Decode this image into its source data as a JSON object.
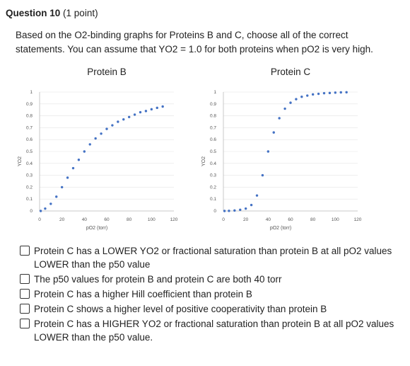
{
  "question": {
    "title": "Question 10",
    "points": "(1 point)",
    "prompt": "Based on the O2-binding graphs for Proteins B and C, choose all of the correct statements. You can assume that YO2 = 1.0 for both proteins when pO2 is very high."
  },
  "chart_data": [
    {
      "type": "scatter",
      "title": "Protein B",
      "xlabel": "pO2 (torr)",
      "ylabel": "YO2",
      "xlim": [
        0,
        120
      ],
      "ylim": [
        0,
        1
      ],
      "xticks": [
        "0",
        "20",
        "40",
        "60",
        "80",
        "100",
        "120"
      ],
      "yticks": [
        "0",
        "0.1",
        "0.2",
        "0.3",
        "0.4",
        "0.5",
        "0.6",
        "0.7",
        "0.8",
        "0.9",
        "1"
      ],
      "grid": true,
      "marker_color": "#4472c4",
      "x": [
        1,
        5,
        10,
        15,
        20,
        25,
        30,
        35,
        40,
        45,
        50,
        55,
        60,
        65,
        70,
        75,
        80,
        85,
        90,
        95,
        100,
        105,
        110
      ],
      "y": [
        0.0,
        0.02,
        0.06,
        0.12,
        0.2,
        0.28,
        0.36,
        0.43,
        0.5,
        0.56,
        0.61,
        0.65,
        0.69,
        0.72,
        0.75,
        0.77,
        0.79,
        0.81,
        0.83,
        0.84,
        0.855,
        0.867,
        0.878
      ]
    },
    {
      "type": "scatter",
      "title": "Protein C",
      "xlabel": "pO2 (torr)",
      "ylabel": "YO2",
      "xlim": [
        0,
        120
      ],
      "ylim": [
        0,
        1
      ],
      "xticks": [
        "0",
        "20",
        "40",
        "60",
        "80",
        "100",
        "120"
      ],
      "yticks": [
        "0",
        "0.1",
        "0.2",
        "0.3",
        "0.4",
        "0.5",
        "0.6",
        "0.7",
        "0.8",
        "0.9",
        "1"
      ],
      "grid": true,
      "marker_color": "#4472c4",
      "x": [
        1,
        5,
        10,
        15,
        20,
        25,
        30,
        35,
        40,
        45,
        50,
        55,
        60,
        65,
        70,
        75,
        80,
        85,
        90,
        95,
        100,
        105,
        110
      ],
      "y": [
        0.0,
        0.001,
        0.004,
        0.01,
        0.02,
        0.05,
        0.13,
        0.3,
        0.5,
        0.66,
        0.78,
        0.86,
        0.91,
        0.94,
        0.96,
        0.97,
        0.98,
        0.985,
        0.99,
        0.992,
        0.995,
        0.997,
        0.998
      ]
    }
  ],
  "options": [
    "Protein C has a LOWER YO2 or fractional saturation than protein B at all pO2 values LOWER than the p50 value",
    "The p50 values for protein B and protein C are both 40 torr",
    "Protein C has a higher Hill coefficient than protein B",
    "Protein C shows a higher level of positive cooperativity than protein B",
    "Protein C has a HIGHER YO2 or fractional saturation than protein B at all pO2 values LOWER than the p50 value."
  ]
}
